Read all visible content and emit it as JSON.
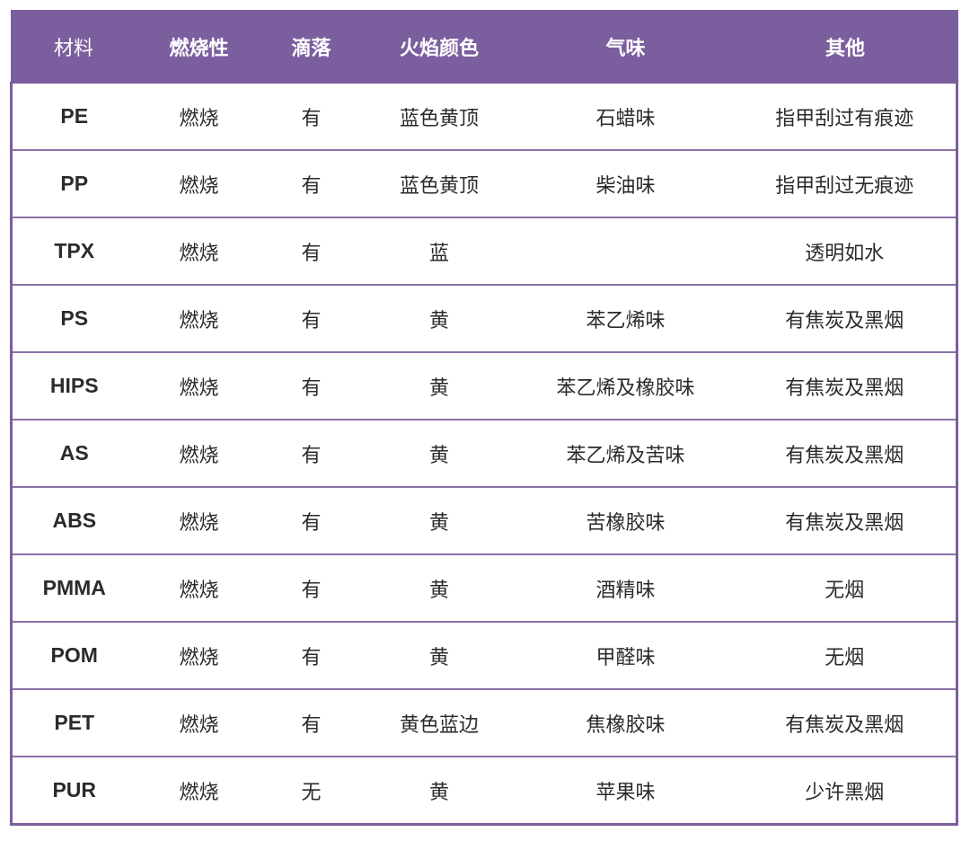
{
  "table": {
    "headers": [
      "材料",
      "燃烧性",
      "滴落",
      "火焰颜色",
      "气味",
      "其他"
    ],
    "rows": [
      [
        "PE",
        "燃烧",
        "有",
        "蓝色黄顶",
        "石蜡味",
        "指甲刮过有痕迹"
      ],
      [
        "PP",
        "燃烧",
        "有",
        "蓝色黄顶",
        "柴油味",
        "指甲刮过无痕迹"
      ],
      [
        "TPX",
        "燃烧",
        "有",
        "蓝",
        "",
        "透明如水"
      ],
      [
        "PS",
        "燃烧",
        "有",
        "黄",
        "苯乙烯味",
        "有焦炭及黑烟"
      ],
      [
        "HIPS",
        "燃烧",
        "有",
        "黄",
        "苯乙烯及橡胶味",
        "有焦炭及黑烟"
      ],
      [
        "AS",
        "燃烧",
        "有",
        "黄",
        "苯乙烯及苦味",
        "有焦炭及黑烟"
      ],
      [
        "ABS",
        "燃烧",
        "有",
        "黄",
        "苦橡胶味",
        "有焦炭及黑烟"
      ],
      [
        "PMMA",
        "燃烧",
        "有",
        "黄",
        "酒精味",
        "无烟"
      ],
      [
        "POM",
        "燃烧",
        "有",
        "黄",
        "甲醛味",
        "无烟"
      ],
      [
        "PET",
        "燃烧",
        "有",
        "黄色蓝边",
        "焦橡胶味",
        "有焦炭及黑烟"
      ],
      [
        "PUR",
        "燃烧",
        "无",
        "黄",
        "苹果味",
        "少许黑烟"
      ]
    ]
  },
  "colors": {
    "header_bg": "#7b5e9e",
    "border": "#8a72a8"
  }
}
